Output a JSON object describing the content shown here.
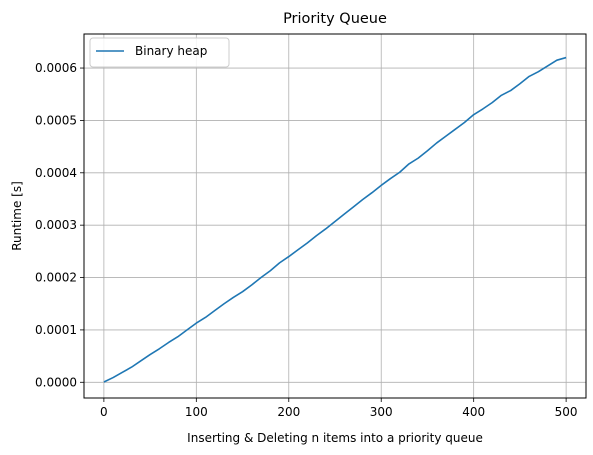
{
  "chart_data": {
    "type": "line",
    "title": "Priority Queue",
    "xlabel": "Inserting & Deleting n items into a priority queue",
    "ylabel": "Runtime [s]",
    "xlim": [
      -21.5,
      521.5
    ],
    "ylim": [
      -3e-05,
      0.000665
    ],
    "xticks": [
      0,
      100,
      200,
      300,
      400,
      500
    ],
    "xtick_labels": [
      "0",
      "100",
      "200",
      "300",
      "400",
      "500"
    ],
    "yticks": [
      0.0,
      0.0001,
      0.0002,
      0.0003,
      0.0004,
      0.0005,
      0.0006
    ],
    "ytick_labels": [
      "0.0000",
      "0.0001",
      "0.0002",
      "0.0003",
      "0.0004",
      "0.0005",
      "0.0006"
    ],
    "grid": true,
    "legend": {
      "placement": "top-left",
      "entries": [
        "Binary heap"
      ]
    },
    "series": [
      {
        "name": "Binary heap",
        "color": "#1f77b4",
        "x": [
          0,
          10,
          20,
          30,
          40,
          50,
          60,
          70,
          80,
          90,
          100,
          110,
          120,
          130,
          140,
          150,
          160,
          170,
          180,
          190,
          200,
          210,
          220,
          230,
          240,
          250,
          260,
          270,
          280,
          290,
          300,
          310,
          320,
          330,
          340,
          350,
          360,
          370,
          380,
          390,
          400,
          410,
          420,
          430,
          440,
          450,
          460,
          470,
          480,
          490,
          500
        ],
        "y": [
          5e-07,
          9e-06,
          1.9e-05,
          2.9e-05,
          4.1e-05,
          5.3e-05,
          6.4e-05,
          7.6e-05,
          8.7e-05,
          0.0001,
          0.000113,
          0.000124,
          0.000137,
          0.00015,
          0.000162,
          0.000173,
          0.000186,
          0.0002,
          0.000213,
          0.000228,
          0.00024,
          0.000253,
          0.000266,
          0.00028,
          0.000293,
          0.000307,
          0.000321,
          0.000335,
          0.000349,
          0.000362,
          0.000376,
          0.000389,
          0.000401,
          0.000417,
          0.000428,
          0.000442,
          0.000457,
          0.00047,
          0.000483,
          0.000496,
          0.000511,
          0.000522,
          0.000534,
          0.000548,
          0.000557,
          0.00057,
          0.000584,
          0.000593,
          0.000604,
          0.000615,
          0.00062
        ]
      }
    ]
  }
}
